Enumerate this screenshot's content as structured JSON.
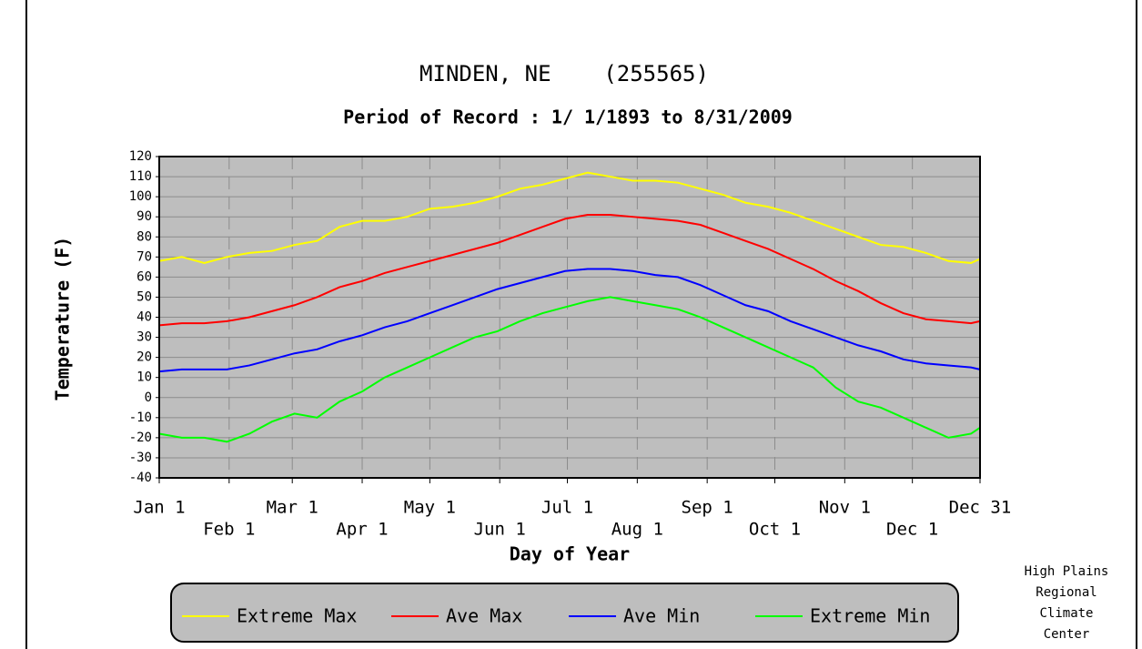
{
  "chart_data": {
    "type": "line",
    "title": "MINDEN, NE    (255565)",
    "subtitle": "Period of Record : 1/ 1/1893 to 8/31/2009",
    "xlabel": "Day of Year",
    "ylabel": "Temperature (F)",
    "credit": [
      "High Plains",
      "Regional",
      "Climate",
      "Center"
    ],
    "x": [
      1,
      11,
      21,
      31,
      41,
      51,
      61,
      71,
      81,
      91,
      101,
      111,
      121,
      131,
      141,
      151,
      161,
      171,
      181,
      191,
      201,
      211,
      221,
      231,
      241,
      251,
      261,
      271,
      281,
      291,
      301,
      311,
      321,
      331,
      341,
      351,
      361,
      365
    ],
    "series": [
      {
        "name": "Extreme Max",
        "color": "#ffff00",
        "values": [
          68,
          70,
          67,
          70,
          72,
          73,
          76,
          78,
          85,
          88,
          88,
          90,
          94,
          95,
          97,
          100,
          104,
          106,
          109,
          112,
          110,
          108,
          108,
          107,
          104,
          101,
          97,
          95,
          92,
          88,
          84,
          80,
          76,
          75,
          72,
          68,
          67,
          69
        ]
      },
      {
        "name": "Ave Max",
        "color": "#ff0000",
        "values": [
          36,
          37,
          37,
          38,
          40,
          43,
          46,
          50,
          55,
          58,
          62,
          65,
          68,
          71,
          74,
          77,
          81,
          85,
          89,
          91,
          91,
          90,
          89,
          88,
          86,
          82,
          78,
          74,
          69,
          64,
          58,
          53,
          47,
          42,
          39,
          38,
          37,
          38
        ]
      },
      {
        "name": "Ave Min",
        "color": "#0000ff",
        "values": [
          13,
          14,
          14,
          14,
          16,
          19,
          22,
          24,
          28,
          31,
          35,
          38,
          42,
          46,
          50,
          54,
          57,
          60,
          63,
          64,
          64,
          63,
          61,
          60,
          56,
          51,
          46,
          43,
          38,
          34,
          30,
          26,
          23,
          19,
          17,
          16,
          15,
          14
        ]
      },
      {
        "name": "Extreme Min",
        "color": "#00ff00",
        "values": [
          -18,
          -20,
          -20,
          -22,
          -18,
          -12,
          -8,
          -10,
          -2,
          3,
          10,
          15,
          20,
          25,
          30,
          33,
          38,
          42,
          45,
          48,
          50,
          48,
          46,
          44,
          40,
          35,
          30,
          25,
          20,
          15,
          5,
          -2,
          -5,
          -10,
          -15,
          -20,
          -18,
          -15
        ]
      }
    ],
    "xlim": [
      1,
      365
    ],
    "xticks": [
      {
        "value": 1,
        "label": "Jan 1"
      },
      {
        "value": 32,
        "label": "Feb 1"
      },
      {
        "value": 60,
        "label": "Mar 1"
      },
      {
        "value": 91,
        "label": "Apr 1"
      },
      {
        "value": 121,
        "label": "May 1"
      },
      {
        "value": 152,
        "label": "Jun 1"
      },
      {
        "value": 182,
        "label": "Jul 1"
      },
      {
        "value": 213,
        "label": "Aug 1"
      },
      {
        "value": 244,
        "label": "Sep 1"
      },
      {
        "value": 274,
        "label": "Oct 1"
      },
      {
        "value": 305,
        "label": "Nov 1"
      },
      {
        "value": 335,
        "label": "Dec 1"
      },
      {
        "value": 365,
        "label": "Dec 31"
      }
    ],
    "ylim": [
      -40,
      120
    ],
    "yticks": [
      -40,
      -30,
      -20,
      -10,
      0,
      10,
      20,
      30,
      40,
      50,
      60,
      70,
      80,
      90,
      100,
      110,
      120
    ],
    "grid": true
  }
}
